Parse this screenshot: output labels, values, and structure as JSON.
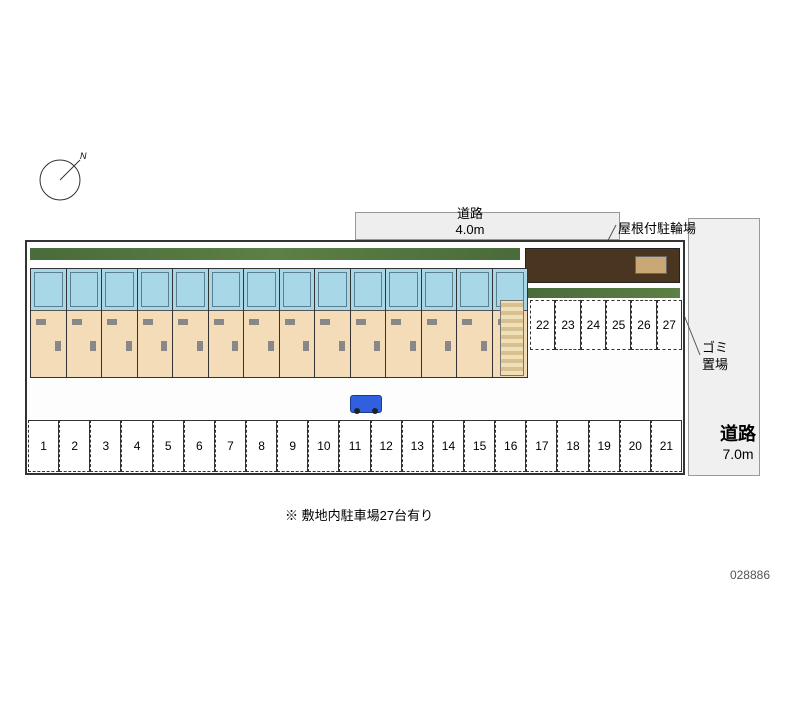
{
  "compass": {
    "direction_label": "N"
  },
  "roads": {
    "top": {
      "label": "道路",
      "width_m": "4.0m"
    },
    "right": {
      "label": "道路",
      "width_m": "7.0m"
    }
  },
  "labels": {
    "bike_shed": "屋根付駐輪場",
    "trash": "ゴミ\n置場"
  },
  "building": {
    "unit_count": 14,
    "colors": {
      "wet_area": "#a8d8e8",
      "living_area": "#f5dcb8",
      "hedge": "#4a6b3a"
    }
  },
  "parking": {
    "row_upper": [
      22,
      23,
      24,
      25,
      26,
      27
    ],
    "row_lower": [
      21,
      20,
      19,
      18,
      17,
      16,
      15,
      14,
      13,
      12,
      11,
      10,
      9,
      8,
      7,
      6,
      5,
      4,
      3,
      2,
      1
    ],
    "total": 27
  },
  "car": {
    "color": "#3060e0"
  },
  "note": "※ 敷地内駐車場27台有り",
  "serial": "028886"
}
